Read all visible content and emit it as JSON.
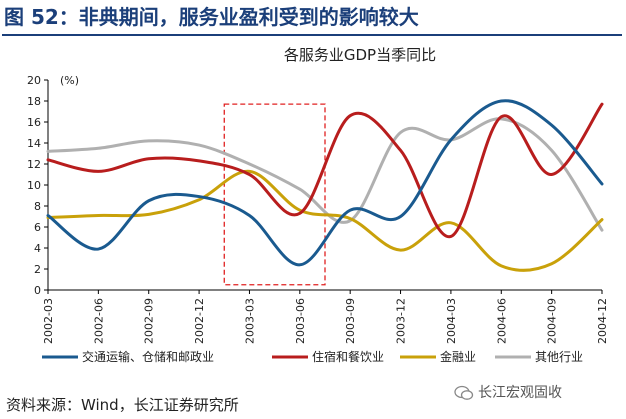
{
  "figure_title": "图 52：非典期间，服务业盈利受到的影响较大",
  "source": "资料来源：Wind，长江证券研究所",
  "watermark": "长江宏观固收",
  "chart_data": {
    "type": "line",
    "title": "各服务业GDP当季同比",
    "unit_label": "(%)",
    "xlabel": "",
    "ylabel": "",
    "ylim": [
      0,
      20
    ],
    "yticks": [
      0,
      2,
      4,
      6,
      8,
      10,
      12,
      14,
      16,
      18,
      20
    ],
    "categories": [
      "2002-03",
      "2002-06",
      "2002-09",
      "2002-12",
      "2003-03",
      "2003-06",
      "2003-09",
      "2003-12",
      "2004-03",
      "2004-06",
      "2004-09",
      "2004-12"
    ],
    "grid": false,
    "legend_position": "bottom",
    "highlight": {
      "from": "2003-03",
      "to": "2003-06",
      "style": "red-dashed-box"
    },
    "series": [
      {
        "name": "交通运输、仓储和邮政业",
        "color": "#1a5a8f",
        "values": [
          7.1,
          3.9,
          8.5,
          8.9,
          7.1,
          2.4,
          7.6,
          7.0,
          14.3,
          18.0,
          15.7,
          10.1
        ]
      },
      {
        "name": "住宿和餐饮业",
        "color": "#b81d1d",
        "values": [
          12.4,
          11.3,
          12.5,
          12.3,
          11.0,
          7.3,
          16.6,
          13.3,
          5.1,
          16.5,
          11.0,
          17.7
        ]
      },
      {
        "name": "金融业",
        "color": "#c9a10a",
        "values": [
          6.9,
          7.1,
          7.2,
          8.6,
          11.3,
          7.6,
          6.8,
          3.8,
          6.4,
          2.3,
          2.5,
          6.7
        ]
      },
      {
        "name": "其他行业",
        "color": "#b0b0b0",
        "values": [
          13.2,
          13.5,
          14.2,
          13.8,
          12.0,
          9.6,
          6.6,
          15.0,
          14.3,
          16.3,
          13.3,
          5.7
        ]
      }
    ]
  }
}
